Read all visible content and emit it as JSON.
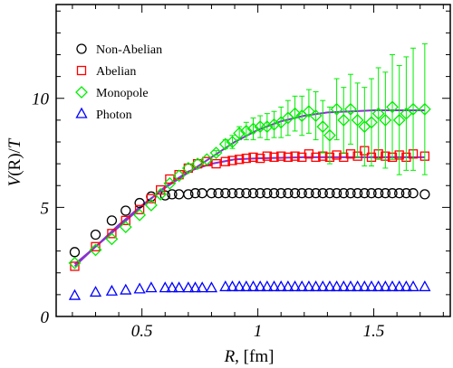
{
  "chart_data": {
    "type": "scatter",
    "title": "",
    "xlabel_parts": {
      "var": "R",
      "unit": ", [fm]"
    },
    "ylabel_parts": {
      "var1": "V",
      "arg": "(R)/",
      "var2": "T"
    },
    "xlim": [
      0.13,
      1.83
    ],
    "ylim": [
      0,
      14.3
    ],
    "x_ticks": [
      {
        "value": 0.5,
        "label": "0.5"
      },
      {
        "value": 1.0,
        "label": "1"
      },
      {
        "value": 1.5,
        "label": "1.5"
      }
    ],
    "y_ticks": [
      {
        "value": 0,
        "label": "0"
      },
      {
        "value": 5,
        "label": "5"
      },
      {
        "value": 10,
        "label": "10"
      }
    ],
    "legend_placement": "top-left",
    "legend": [
      {
        "label": "Non-Abelian",
        "marker": "circle",
        "color": "#000000"
      },
      {
        "label": "Abelian",
        "marker": "square",
        "color": "#ff0000"
      },
      {
        "label": "Monopole",
        "marker": "diamond",
        "color": "#00ee00"
      },
      {
        "label": "Photon",
        "marker": "triangle",
        "color": "#0000ff"
      }
    ],
    "fit_color": "#8833cc",
    "series": [
      {
        "name": "Non-Abelian",
        "marker": "circle",
        "color": "#000000",
        "x": [
          0.21,
          0.3,
          0.37,
          0.43,
          0.49,
          0.54,
          0.6,
          0.63,
          0.66,
          0.7,
          0.73,
          0.76,
          0.8,
          0.83,
          0.86,
          0.89,
          0.92,
          0.95,
          0.98,
          1.01,
          1.04,
          1.07,
          1.1,
          1.13,
          1.16,
          1.19,
          1.22,
          1.25,
          1.28,
          1.31,
          1.34,
          1.37,
          1.4,
          1.43,
          1.46,
          1.49,
          1.52,
          1.55,
          1.58,
          1.61,
          1.64,
          1.67,
          1.72
        ],
        "y": [
          2.95,
          3.75,
          4.4,
          4.85,
          5.2,
          5.5,
          5.55,
          5.6,
          5.6,
          5.6,
          5.65,
          5.65,
          5.65,
          5.65,
          5.65,
          5.65,
          5.65,
          5.65,
          5.65,
          5.65,
          5.65,
          5.65,
          5.65,
          5.65,
          5.65,
          5.65,
          5.65,
          5.65,
          5.65,
          5.65,
          5.65,
          5.65,
          5.65,
          5.65,
          5.65,
          5.65,
          5.65,
          5.65,
          5.65,
          5.65,
          5.65,
          5.65,
          5.6
        ]
      },
      {
        "name": "Abelian",
        "marker": "square",
        "color": "#ff0000",
        "x": [
          0.21,
          0.3,
          0.37,
          0.43,
          0.49,
          0.54,
          0.58,
          0.62,
          0.66,
          0.7,
          0.74,
          0.78,
          0.82,
          0.86,
          0.89,
          0.92,
          0.95,
          0.98,
          1.01,
          1.04,
          1.07,
          1.1,
          1.13,
          1.16,
          1.19,
          1.22,
          1.25,
          1.28,
          1.31,
          1.34,
          1.37,
          1.4,
          1.43,
          1.46,
          1.49,
          1.52,
          1.55,
          1.58,
          1.61,
          1.64,
          1.67,
          1.72
        ],
        "y": [
          2.3,
          3.2,
          3.8,
          4.4,
          4.9,
          5.4,
          5.8,
          6.3,
          6.5,
          6.8,
          7.0,
          7.1,
          7.0,
          7.1,
          7.15,
          7.2,
          7.25,
          7.3,
          7.25,
          7.35,
          7.3,
          7.35,
          7.3,
          7.35,
          7.3,
          7.45,
          7.3,
          7.35,
          7.3,
          7.4,
          7.3,
          7.45,
          7.35,
          7.6,
          7.3,
          7.45,
          7.35,
          7.3,
          7.4,
          7.3,
          7.45,
          7.35
        ]
      },
      {
        "name": "Monopole",
        "marker": "diamond",
        "color": "#00ee00",
        "x": [
          0.21,
          0.3,
          0.37,
          0.43,
          0.49,
          0.54,
          0.58,
          0.62,
          0.66,
          0.7,
          0.74,
          0.78,
          0.82,
          0.86,
          0.89,
          0.92,
          0.95,
          0.98,
          1.01,
          1.04,
          1.07,
          1.1,
          1.13,
          1.16,
          1.19,
          1.22,
          1.25,
          1.28,
          1.31,
          1.34,
          1.37,
          1.4,
          1.43,
          1.46,
          1.49,
          1.52,
          1.55,
          1.58,
          1.61,
          1.64,
          1.67,
          1.72
        ],
        "y": [
          2.45,
          3.05,
          3.55,
          4.1,
          4.65,
          5.1,
          5.6,
          6.1,
          6.45,
          6.8,
          7.0,
          7.2,
          7.5,
          7.9,
          8.0,
          8.4,
          8.5,
          8.6,
          8.7,
          8.7,
          8.8,
          8.9,
          9.1,
          9.3,
          9.2,
          9.4,
          9.2,
          8.7,
          8.3,
          9.5,
          9.0,
          9.5,
          9.0,
          8.7,
          8.9,
          9.3,
          9.0,
          9.6,
          9.0,
          9.3,
          9.5,
          9.5
        ],
        "err": [
          0,
          0,
          0,
          0,
          0,
          0,
          0,
          0,
          0,
          0,
          0,
          0,
          0.1,
          0.2,
          0.3,
          0.3,
          0.4,
          0.5,
          0.5,
          0.6,
          0.6,
          0.7,
          0.8,
          0.8,
          0.9,
          1.0,
          1.1,
          1.2,
          1.3,
          1.4,
          1.5,
          1.6,
          1.7,
          1.8,
          2.0,
          2.1,
          2.2,
          2.4,
          2.5,
          2.6,
          2.8,
          3.0
        ]
      },
      {
        "name": "Photon",
        "marker": "triangle",
        "color": "#0000ff",
        "x": [
          0.21,
          0.3,
          0.37,
          0.43,
          0.49,
          0.54,
          0.6,
          0.63,
          0.66,
          0.7,
          0.73,
          0.76,
          0.8,
          0.86,
          0.89,
          0.92,
          0.95,
          0.98,
          1.01,
          1.04,
          1.07,
          1.1,
          1.13,
          1.16,
          1.19,
          1.22,
          1.25,
          1.28,
          1.31,
          1.34,
          1.37,
          1.4,
          1.43,
          1.46,
          1.49,
          1.52,
          1.55,
          1.58,
          1.61,
          1.64,
          1.67,
          1.72
        ],
        "y": [
          0.95,
          1.1,
          1.15,
          1.2,
          1.25,
          1.3,
          1.3,
          1.3,
          1.3,
          1.3,
          1.3,
          1.3,
          1.3,
          1.35,
          1.35,
          1.35,
          1.35,
          1.35,
          1.35,
          1.35,
          1.35,
          1.35,
          1.35,
          1.35,
          1.35,
          1.35,
          1.35,
          1.35,
          1.35,
          1.35,
          1.35,
          1.35,
          1.35,
          1.35,
          1.35,
          1.35,
          1.35,
          1.35,
          1.35,
          1.35,
          1.35,
          1.35
        ]
      }
    ],
    "fits": [
      {
        "series": "Abelian",
        "x": [
          0.21,
          0.3,
          0.4,
          0.5,
          0.6,
          0.7,
          0.8,
          0.9,
          1.0,
          1.2,
          1.4,
          1.6,
          1.72
        ],
        "y": [
          2.3,
          3.2,
          4.1,
          5.05,
          5.95,
          6.65,
          7.0,
          7.2,
          7.25,
          7.3,
          7.3,
          7.3,
          7.3
        ]
      },
      {
        "series": "Monopole",
        "x": [
          0.21,
          0.3,
          0.4,
          0.5,
          0.6,
          0.7,
          0.8,
          0.9,
          1.0,
          1.1,
          1.2,
          1.3,
          1.4,
          1.5,
          1.6,
          1.72
        ],
        "y": [
          2.4,
          3.2,
          4.2,
          5.1,
          5.9,
          6.6,
          7.3,
          8.0,
          8.55,
          8.95,
          9.2,
          9.35,
          9.4,
          9.45,
          9.45,
          9.45
        ]
      }
    ]
  }
}
